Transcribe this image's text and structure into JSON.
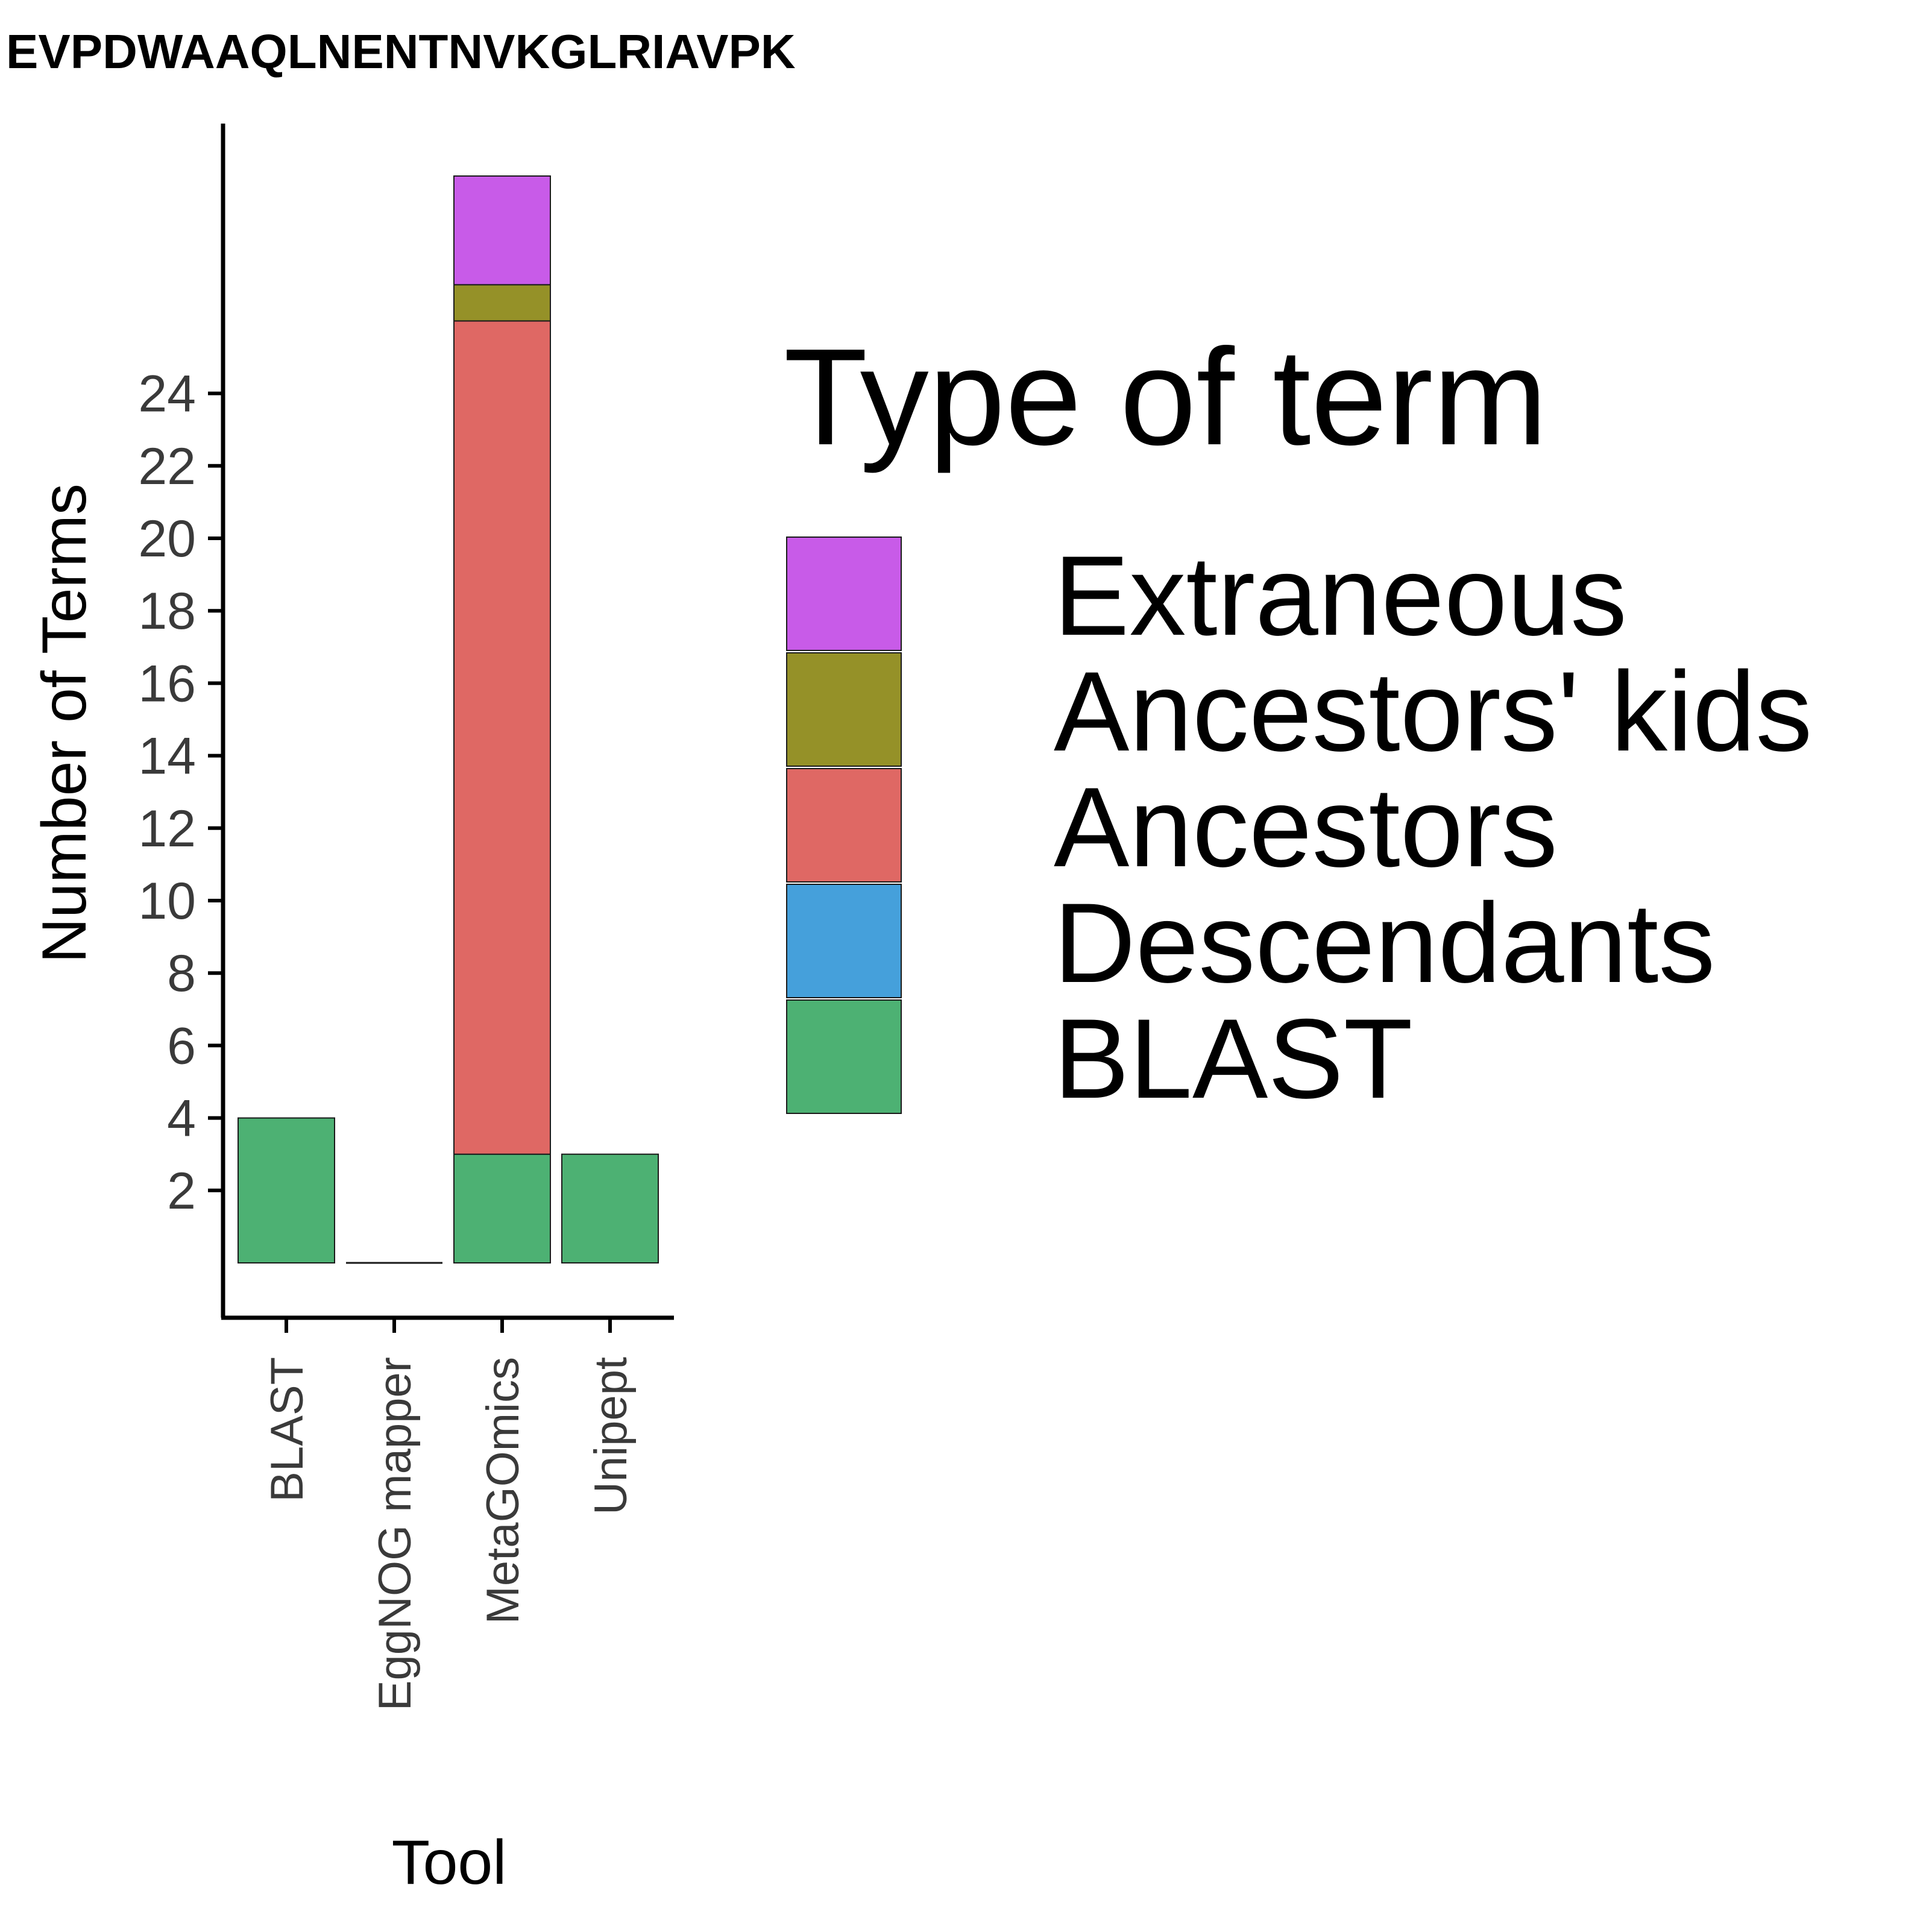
{
  "chart_data": {
    "type": "bar",
    "stacked": true,
    "title": "EVPDWAAQLNENTNVKGLRIAVPK",
    "xlabel": "Tool",
    "ylabel": "Number of Terms",
    "categories": [
      "BLAST",
      "EggNOG mapper",
      "MetaGOmics",
      "Unipept"
    ],
    "yticks": [
      2,
      4,
      6,
      8,
      10,
      12,
      14,
      16,
      18,
      20,
      22,
      24
    ],
    "ylim": [
      0,
      30
    ],
    "grid": false,
    "legend": {
      "title": "Type of term",
      "position": "right",
      "entries": [
        "Extraneous",
        "Ancestors' kids",
        "Ancestors",
        "Descendants",
        "BLAST"
      ]
    },
    "series": [
      {
        "name": "BLAST",
        "color": "#4DB173",
        "values": [
          4,
          0,
          3,
          3
        ]
      },
      {
        "name": "Descendants",
        "color": "#45A0DB",
        "values": [
          0,
          0,
          0,
          0
        ]
      },
      {
        "name": "Ancestors",
        "color": "#DF6864",
        "values": [
          0,
          0,
          23,
          0
        ]
      },
      {
        "name": "Ancestors' kids",
        "color": "#959128",
        "values": [
          0,
          0,
          1,
          0
        ]
      },
      {
        "name": "Extraneous",
        "color": "#C85BE8",
        "values": [
          0,
          0,
          3,
          0
        ]
      }
    ]
  }
}
